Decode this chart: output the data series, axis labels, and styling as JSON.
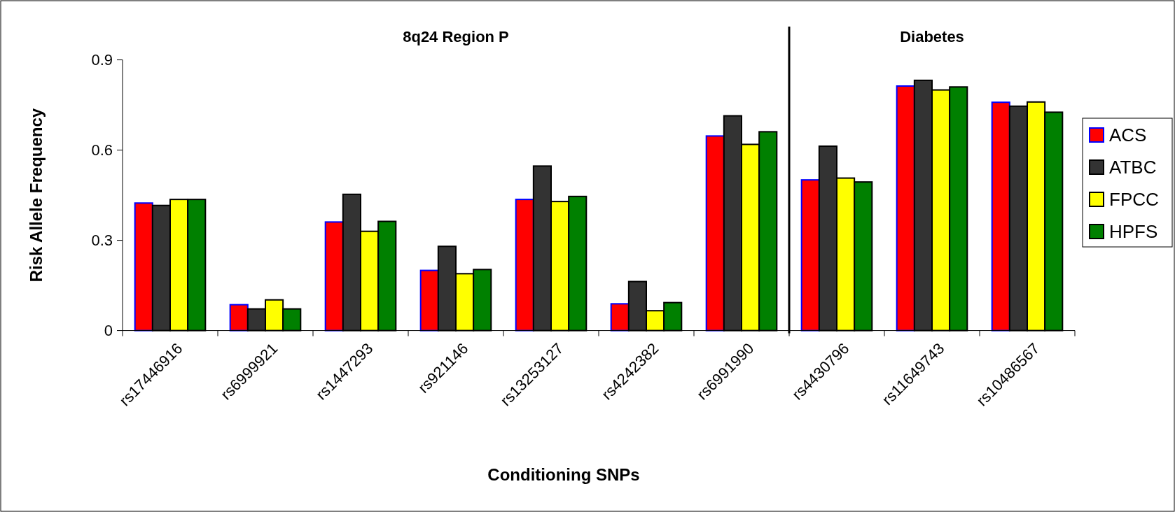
{
  "chart_data": {
    "type": "bar",
    "xlabel": "Conditioning SNPs",
    "ylabel": "Risk Allele Frequency",
    "categories": [
      "rs17446916",
      "rs6999921",
      "rs1447293",
      "rs921146",
      "rs13253127",
      "rs4242382",
      "rs6991990",
      "rs4430796",
      "rs11649743",
      "rs10486567"
    ],
    "series": [
      {
        "name": "ACS",
        "color": "#ff0000",
        "values": [
          0.424,
          0.086,
          0.361,
          0.2,
          0.436,
          0.089,
          0.647,
          0.501,
          0.813,
          0.759
        ]
      },
      {
        "name": "ATBC",
        "color": "#333333",
        "values": [
          0.416,
          0.072,
          0.453,
          0.28,
          0.547,
          0.163,
          0.714,
          0.613,
          0.832,
          0.746
        ]
      },
      {
        "name": "FPCC",
        "color": "#ffff00",
        "values": [
          0.436,
          0.102,
          0.33,
          0.189,
          0.429,
          0.066,
          0.619,
          0.507,
          0.8,
          0.76
        ]
      },
      {
        "name": "HPFS",
        "color": "#008000",
        "values": [
          0.436,
          0.072,
          0.363,
          0.203,
          0.446,
          0.093,
          0.661,
          0.494,
          0.81,
          0.726
        ]
      }
    ],
    "ylim": [
      0,
      0.9
    ],
    "yticks": [
      0,
      0.3,
      0.6,
      0.9
    ],
    "grid": false,
    "legend": "right",
    "annotations": [
      "8q24 Region P",
      "Diabetes"
    ],
    "ref_lines": [
      {
        "axis": "x",
        "value": "rs4430796",
        "color": "#000000"
      }
    ]
  }
}
